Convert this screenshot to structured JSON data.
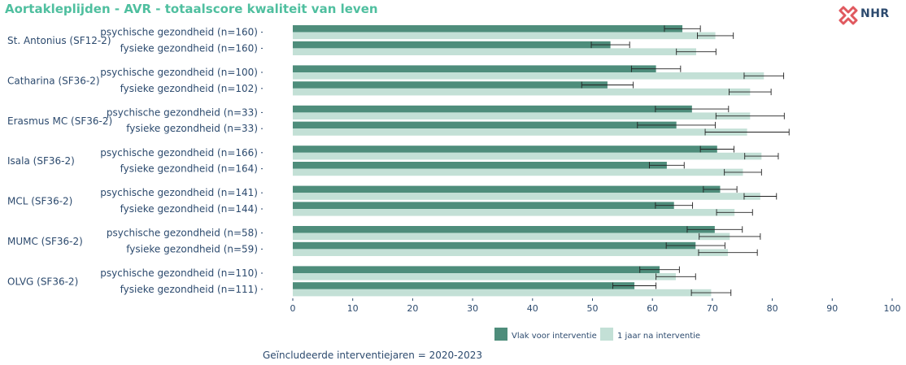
{
  "title": "Aortakleplijden - AVR - totaalscore kwaliteit van leven",
  "logo": {
    "text": "NHR",
    "icon": "nhr-cross-logo-icon"
  },
  "footer": "Geïncludeerde interventiejaren = 2020-2023",
  "colors": {
    "before": "#4e8d7b",
    "after": "#c3e0d6",
    "text": "#2c4a6e",
    "title": "#4fbf9f",
    "logo": "#e0595f"
  },
  "chart_data": {
    "type": "bar",
    "orientation": "horizontal",
    "xlim": [
      0,
      100
    ],
    "xticks": [
      0,
      10,
      20,
      30,
      40,
      50,
      60,
      70,
      80,
      90,
      100
    ],
    "grid": false,
    "legend_position": "bottom",
    "series": [
      {
        "name": "Vlak voor interventie",
        "color": "#4e8d7b"
      },
      {
        "name": "1 jaar na interventie",
        "color": "#c3e0d6"
      }
    ],
    "groups": [
      {
        "label": "St. Antonius (SF12-2)",
        "rows": [
          {
            "label": "psychische gezondheid (n=160)",
            "before": {
              "value": 65.0,
              "ci": [
                62.0,
                68.0
              ]
            },
            "after": {
              "value": 70.5,
              "ci": [
                67.5,
                73.5
              ]
            }
          },
          {
            "label": "fysieke gezondheid (n=160)",
            "before": {
              "value": 53.0,
              "ci": [
                49.8,
                56.2
              ]
            },
            "after": {
              "value": 67.3,
              "ci": [
                64.0,
                70.6
              ]
            }
          }
        ]
      },
      {
        "label": "Catharina (SF36-2)",
        "rows": [
          {
            "label": "psychische gezondheid (n=100)",
            "before": {
              "value": 60.6,
              "ci": [
                56.5,
                64.7
              ]
            },
            "after": {
              "value": 78.6,
              "ci": [
                75.3,
                81.9
              ]
            }
          },
          {
            "label": "fysieke gezondheid (n=102)",
            "before": {
              "value": 52.5,
              "ci": [
                48.2,
                56.8
              ]
            },
            "after": {
              "value": 76.3,
              "ci": [
                72.8,
                79.8
              ]
            }
          }
        ]
      },
      {
        "label": "Erasmus MC (SF36-2)",
        "rows": [
          {
            "label": "psychische gezondheid (n=33)",
            "before": {
              "value": 66.6,
              "ci": [
                60.5,
                72.7
              ]
            },
            "after": {
              "value": 76.3,
              "ci": [
                70.6,
                82.0
              ]
            }
          },
          {
            "label": "fysieke gezondheid (n=33)",
            "before": {
              "value": 64.0,
              "ci": [
                57.5,
                70.5
              ]
            },
            "after": {
              "value": 75.8,
              "ci": [
                68.8,
                82.8
              ]
            }
          }
        ]
      },
      {
        "label": "Isala (SF36-2)",
        "rows": [
          {
            "label": "psychische gezondheid (n=166)",
            "before": {
              "value": 70.8,
              "ci": [
                68.0,
                73.6
              ]
            },
            "after": {
              "value": 78.2,
              "ci": [
                75.4,
                81.0
              ]
            }
          },
          {
            "label": "fysieke gezondheid (n=164)",
            "before": {
              "value": 62.4,
              "ci": [
                59.5,
                65.3
              ]
            },
            "after": {
              "value": 75.1,
              "ci": [
                72.0,
                78.2
              ]
            }
          }
        ]
      },
      {
        "label": "MCL (SF36-2)",
        "rows": [
          {
            "label": "psychische gezondheid (n=141)",
            "before": {
              "value": 71.3,
              "ci": [
                68.5,
                74.1
              ]
            },
            "after": {
              "value": 78.0,
              "ci": [
                75.3,
                80.7
              ]
            }
          },
          {
            "label": "fysieke gezondheid (n=144)",
            "before": {
              "value": 63.6,
              "ci": [
                60.5,
                66.7
              ]
            },
            "after": {
              "value": 73.7,
              "ci": [
                70.7,
                76.7
              ]
            }
          }
        ]
      },
      {
        "label": "MUMC (SF36-2)",
        "rows": [
          {
            "label": "psychische gezondheid (n=58)",
            "before": {
              "value": 70.4,
              "ci": [
                65.8,
                75.0
              ]
            },
            "after": {
              "value": 72.9,
              "ci": [
                67.8,
                78.0
              ]
            }
          },
          {
            "label": "fysieke gezondheid (n=59)",
            "before": {
              "value": 67.2,
              "ci": [
                62.3,
                72.1
              ]
            },
            "after": {
              "value": 72.6,
              "ci": [
                67.7,
                77.5
              ]
            }
          }
        ]
      },
      {
        "label": "OLVG (SF36-2)",
        "rows": [
          {
            "label": "psychische gezondheid (n=110)",
            "before": {
              "value": 61.2,
              "ci": [
                57.9,
                64.5
              ]
            },
            "after": {
              "value": 63.9,
              "ci": [
                60.6,
                67.2
              ]
            }
          },
          {
            "label": "fysieke gezondheid (n=111)",
            "before": {
              "value": 57.0,
              "ci": [
                53.4,
                60.6
              ]
            },
            "after": {
              "value": 69.8,
              "ci": [
                66.5,
                73.1
              ]
            }
          }
        ]
      }
    ]
  }
}
